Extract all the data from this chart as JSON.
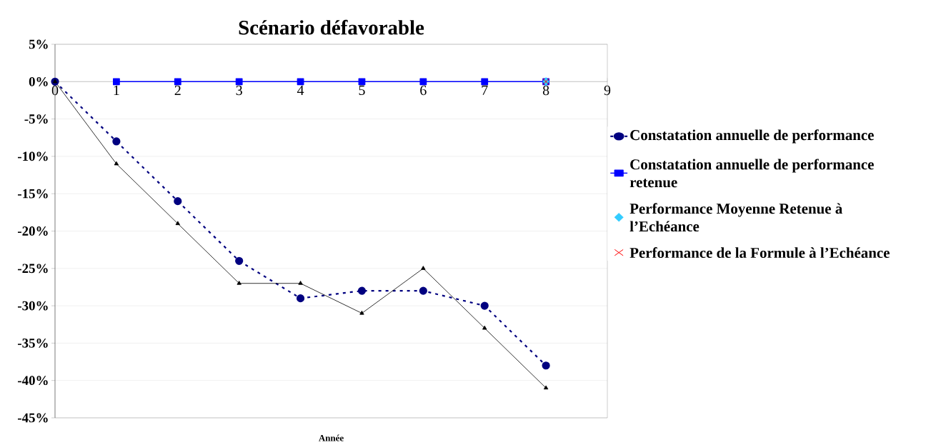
{
  "chart_data": {
    "type": "line",
    "title": "Scénario défavorable",
    "xlabel": "Année",
    "xlim": [
      0,
      9
    ],
    "xticks": [
      0,
      1,
      2,
      3,
      4,
      5,
      6,
      7,
      8,
      9
    ],
    "ylim": [
      -45,
      5
    ],
    "yticks": [
      {
        "value": 5,
        "label": "5%"
      },
      {
        "value": 0,
        "label": "0%"
      },
      {
        "value": -5,
        "label": "-5%"
      },
      {
        "value": -10,
        "label": "-10%"
      },
      {
        "value": -15,
        "label": "-15%"
      },
      {
        "value": -20,
        "label": "-20%"
      },
      {
        "value": -25,
        "label": "-25%"
      },
      {
        "value": -30,
        "label": "-30%"
      },
      {
        "value": -35,
        "label": "-35%"
      },
      {
        "value": -40,
        "label": "-40%"
      },
      {
        "value": -45,
        "label": "-45%"
      }
    ],
    "grid": "y",
    "legend": "right",
    "x": [
      0,
      1,
      2,
      3,
      4,
      5,
      6,
      7,
      8
    ],
    "series": [
      {
        "name": "Constatation annuelle de performance",
        "color": "#000080",
        "marker": "circle",
        "line_style": "dashed",
        "values": [
          0,
          -8,
          -16,
          -24,
          -29,
          -28,
          -28,
          -30,
          -38
        ]
      },
      {
        "name": "Constatation annuelle de performance retenue",
        "color": "#0000ff",
        "marker": "square",
        "line_style": "solid",
        "x": [
          1,
          2,
          3,
          4,
          5,
          6,
          7,
          8
        ],
        "values": [
          0,
          0,
          0,
          0,
          0,
          0,
          0,
          0
        ]
      },
      {
        "name": "Performance Moyenne Retenue à l’Echéance",
        "type": "scatter",
        "color": "#33ccff",
        "marker": "diamond",
        "x": [
          8
        ],
        "values": [
          0
        ]
      },
      {
        "name": "Performance de la Formule à l’Echéance",
        "type": "scatter",
        "color": "#ff0000",
        "marker": "cross",
        "x": [
          8
        ],
        "values": [
          0
        ]
      },
      {
        "color": "#000000",
        "marker": "triangle",
        "line_style": "solid",
        "values": [
          0,
          -11,
          -19,
          -27,
          -27,
          -31,
          -25,
          -33,
          -41
        ]
      }
    ]
  }
}
